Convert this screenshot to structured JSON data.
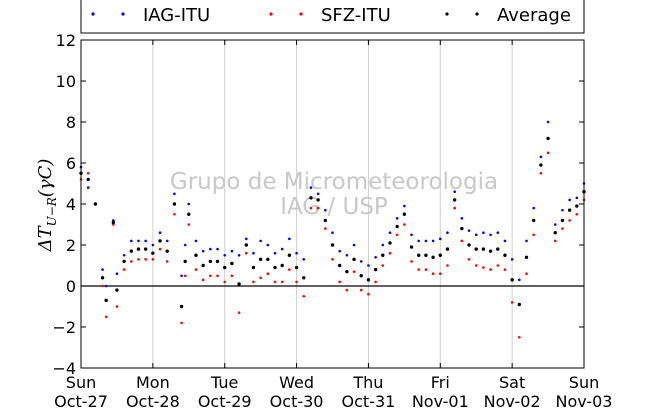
{
  "chart_data": {
    "type": "scatter",
    "ylabel": "ΔT",
    "ylabel_subscript": "U−R",
    "ylabel_unit": "(γC)",
    "xlabel": "",
    "ylim": [
      -4,
      12
    ],
    "yticks": [
      "−4",
      "−2",
      "0",
      "2",
      "4",
      "6",
      "8",
      "10",
      "12"
    ],
    "xlim": [
      0,
      7
    ],
    "xticks": [
      {
        "day": "Sun",
        "date": "Oct-27"
      },
      {
        "day": "Mon",
        "date": "Oct-28"
      },
      {
        "day": "Tue",
        "date": "Oct-29"
      },
      {
        "day": "Wed",
        "date": "Oct-30"
      },
      {
        "day": "Thu",
        "date": "Oct-31"
      },
      {
        "day": "Fri",
        "date": "Nov-01"
      },
      {
        "day": "Sat",
        "date": "Nov-02"
      },
      {
        "day": "Sun",
        "date": "Nov-03"
      }
    ],
    "grid": "vertical",
    "zero_line": true,
    "legend_position": "top",
    "watermark_line1": "Grupo de Micrometeorologia",
    "watermark_line2": "IAG / USP",
    "series": [
      {
        "name": "IAG-ITU",
        "color": "#0000ff",
        "x": [
          0.0,
          0.1,
          0.2,
          0.3,
          0.35,
          0.45,
          0.5,
          0.6,
          0.7,
          0.8,
          0.9,
          1.0,
          1.1,
          1.2,
          1.3,
          1.4,
          1.45,
          1.5,
          1.6,
          1.7,
          1.8,
          1.9,
          2.0,
          2.1,
          2.2,
          2.3,
          2.4,
          2.5,
          2.6,
          2.7,
          2.8,
          2.9,
          3.0,
          3.1,
          3.2,
          3.3,
          3.4,
          3.5,
          3.6,
          3.7,
          3.8,
          3.9,
          4.0,
          4.1,
          4.2,
          4.3,
          4.4,
          4.5,
          4.6,
          4.7,
          4.8,
          4.9,
          5.0,
          5.1,
          5.2,
          5.3,
          5.4,
          5.5,
          5.6,
          5.7,
          5.8,
          5.9,
          6.0,
          6.1,
          6.2,
          6.3,
          6.4,
          6.5,
          6.6,
          6.7,
          6.8,
          6.9,
          7.0
        ],
        "y": [
          5.8,
          4.8,
          4.0,
          0.8,
          0.0,
          3.2,
          0.6,
          1.5,
          2.2,
          2.2,
          2.2,
          2.0,
          2.6,
          2.2,
          4.5,
          0.5,
          2.0,
          4.0,
          2.2,
          1.7,
          1.8,
          1.8,
          1.5,
          1.7,
          1.5,
          2.3,
          1.6,
          2.2,
          2.0,
          1.6,
          1.8,
          2.3,
          1.6,
          1.3,
          4.8,
          4.5,
          3.7,
          2.6,
          1.7,
          1.5,
          2.0,
          1.2,
          1.0,
          1.4,
          2.0,
          2.6,
          3.3,
          3.9,
          2.5,
          2.2,
          2.2,
          2.2,
          2.3,
          2.6,
          4.6,
          3.3,
          2.7,
          2.5,
          2.6,
          2.5,
          2.6,
          2.2,
          1.3,
          0.3,
          2.2,
          3.8,
          6.3,
          8.0,
          3.0,
          3.7,
          4.2,
          4.3,
          5.0
        ]
      },
      {
        "name": "SFZ-ITU",
        "color": "#ff0000",
        "x": [
          0.0,
          0.1,
          0.2,
          0.3,
          0.35,
          0.45,
          0.5,
          0.6,
          0.7,
          0.8,
          0.9,
          1.0,
          1.1,
          1.2,
          1.3,
          1.4,
          1.45,
          1.5,
          1.6,
          1.7,
          1.8,
          1.9,
          2.0,
          2.1,
          2.2,
          2.3,
          2.4,
          2.5,
          2.6,
          2.7,
          2.8,
          2.9,
          3.0,
          3.1,
          3.2,
          3.3,
          3.4,
          3.5,
          3.6,
          3.7,
          3.8,
          3.9,
          4.0,
          4.1,
          4.2,
          4.3,
          4.4,
          4.5,
          4.6,
          4.7,
          4.8,
          4.9,
          5.0,
          5.1,
          5.2,
          5.3,
          5.4,
          5.5,
          5.6,
          5.7,
          5.8,
          5.9,
          6.0,
          6.1,
          6.2,
          6.3,
          6.4,
          6.5,
          6.6,
          6.7,
          6.8,
          6.9,
          7.0
        ],
        "y": [
          5.2,
          5.5,
          4.0,
          0.0,
          -1.5,
          3.0,
          -1.0,
          0.8,
          1.2,
          1.3,
          1.3,
          1.3,
          1.8,
          1.2,
          3.5,
          -1.8,
          0.5,
          3.0,
          0.8,
          0.3,
          0.5,
          0.5,
          0.2,
          0.5,
          -1.3,
          1.6,
          0.2,
          0.4,
          0.6,
          0.2,
          0.2,
          0.8,
          0.2,
          -0.5,
          3.8,
          3.8,
          2.8,
          1.3,
          0.2,
          -0.2,
          0.7,
          -0.2,
          -0.4,
          0.2,
          1.0,
          1.6,
          2.5,
          3.0,
          1.2,
          0.8,
          0.8,
          0.6,
          0.6,
          1.0,
          3.8,
          2.2,
          1.3,
          1.0,
          0.9,
          0.8,
          1.0,
          0.8,
          -0.8,
          -2.5,
          0.6,
          2.5,
          5.5,
          6.5,
          2.2,
          2.8,
          3.2,
          3.5,
          4.2
        ]
      },
      {
        "name": "Average",
        "color": "#000000",
        "x": [
          0.0,
          0.1,
          0.2,
          0.3,
          0.35,
          0.45,
          0.5,
          0.6,
          0.7,
          0.8,
          0.9,
          1.0,
          1.1,
          1.2,
          1.3,
          1.4,
          1.45,
          1.5,
          1.6,
          1.7,
          1.8,
          1.9,
          2.0,
          2.1,
          2.2,
          2.3,
          2.4,
          2.5,
          2.6,
          2.7,
          2.8,
          2.9,
          3.0,
          3.1,
          3.2,
          3.3,
          3.4,
          3.5,
          3.6,
          3.7,
          3.8,
          3.9,
          4.0,
          4.1,
          4.2,
          4.3,
          4.4,
          4.5,
          4.6,
          4.7,
          4.8,
          4.9,
          5.0,
          5.1,
          5.2,
          5.3,
          5.4,
          5.5,
          5.6,
          5.7,
          5.8,
          5.9,
          6.0,
          6.1,
          6.2,
          6.3,
          6.4,
          6.5,
          6.6,
          6.7,
          6.8,
          6.9,
          7.0
        ],
        "y": [
          5.5,
          5.2,
          4.0,
          0.4,
          -0.7,
          3.1,
          -0.2,
          1.2,
          1.7,
          1.8,
          1.8,
          1.6,
          2.2,
          1.7,
          4.0,
          -1.0,
          1.2,
          3.5,
          1.5,
          1.0,
          1.2,
          1.2,
          0.9,
          1.1,
          0.1,
          2.0,
          0.9,
          1.3,
          1.3,
          0.9,
          1.0,
          1.5,
          0.9,
          0.4,
          4.3,
          4.2,
          3.2,
          2.0,
          1.0,
          0.7,
          1.3,
          0.5,
          0.3,
          0.8,
          1.5,
          2.1,
          2.9,
          3.5,
          1.9,
          1.5,
          1.5,
          1.4,
          1.5,
          1.8,
          4.2,
          2.8,
          2.0,
          1.8,
          1.8,
          1.7,
          1.8,
          1.5,
          0.3,
          -0.9,
          1.4,
          3.2,
          5.9,
          7.2,
          2.6,
          3.2,
          3.7,
          3.9,
          4.6
        ]
      }
    ]
  }
}
